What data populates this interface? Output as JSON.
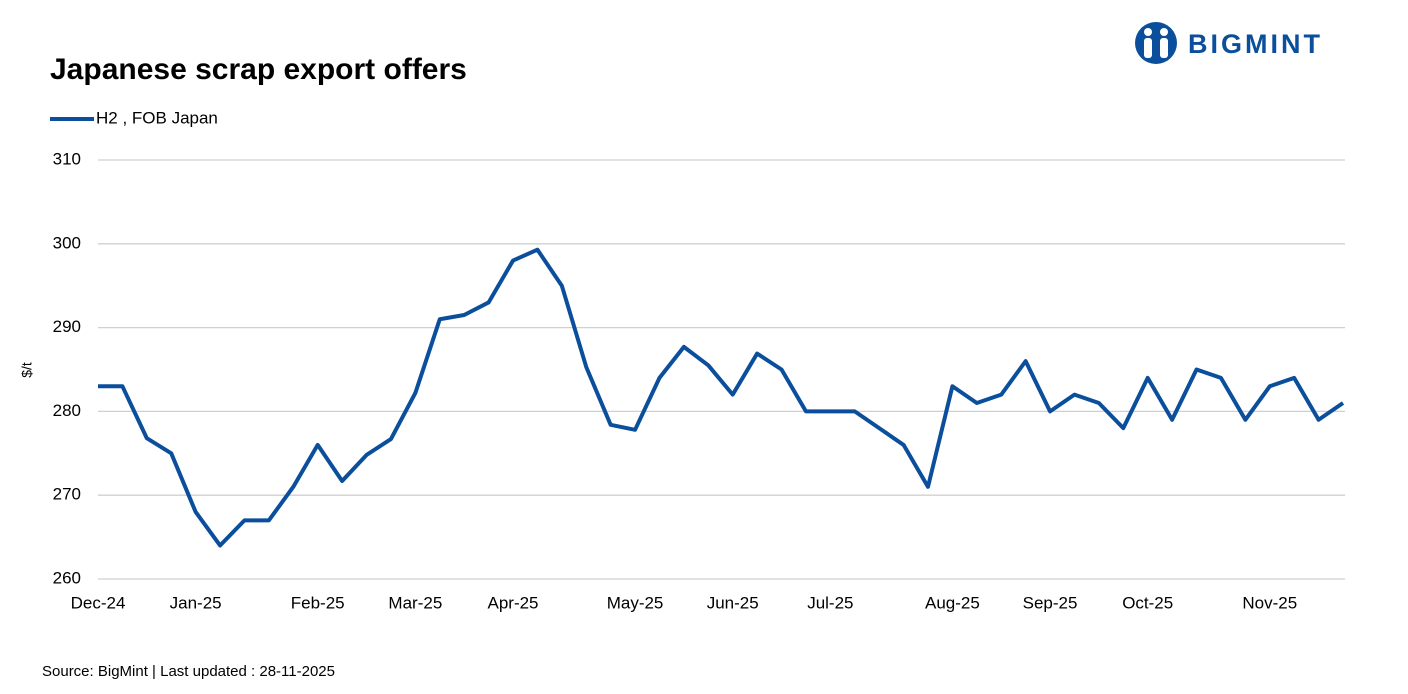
{
  "chart_data": {
    "type": "line",
    "title": "Japanese scrap export offers",
    "brand": "BIGMINT",
    "y_label": "$/t",
    "source": "Source: BigMint  | Last updated : 28-11-2025",
    "categories": [
      "Dec-24",
      null,
      null,
      null,
      "Jan-25",
      null,
      null,
      null,
      null,
      "Feb-25",
      null,
      null,
      null,
      "Mar-25",
      null,
      null,
      null,
      "Apr-25",
      null,
      null,
      null,
      null,
      "May-25",
      null,
      null,
      null,
      "Jun-25",
      null,
      null,
      null,
      "Jul-25",
      null,
      null,
      null,
      null,
      "Aug-25",
      null,
      null,
      null,
      "Sep-25",
      null,
      null,
      null,
      "Oct-25",
      null,
      null,
      null,
      null,
      "Nov-25",
      null,
      null,
      null
    ],
    "series": [
      {
        "name": "H2 , FOB Japan",
        "color": "#0b4f9c",
        "values": [
          283,
          283,
          276.8,
          275,
          268,
          264,
          267,
          267,
          271,
          276,
          271.7,
          274.8,
          276.7,
          282.2,
          291,
          291.5,
          293,
          298,
          299.3,
          295,
          285.3,
          278.4,
          277.8,
          284,
          287.7,
          285.5,
          282,
          286.9,
          285,
          280,
          280,
          280,
          278,
          276,
          271,
          283,
          281,
          282,
          286,
          280,
          282,
          281,
          278,
          284,
          279,
          285,
          284,
          279,
          283,
          284,
          279,
          281
        ]
      }
    ],
    "ylim": [
      260,
      310
    ],
    "yticks": [
      260,
      270,
      280,
      290,
      300,
      310
    ],
    "grid": true
  }
}
